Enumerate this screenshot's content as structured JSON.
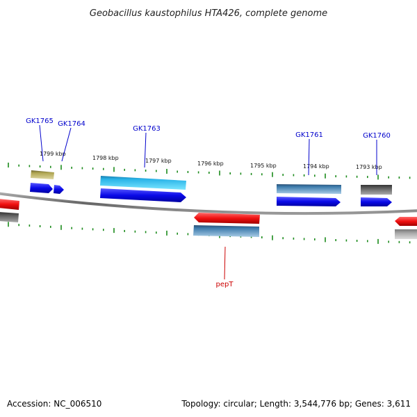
{
  "title": "Geobacillus kaustophilus HTA426, complete genome",
  "footer": {
    "accession": "Accession: NC_006510",
    "summary": "Topology: circular; Length: 3,544,776 bp; Genes: 3,611"
  },
  "scale_labels": [
    "1799 kbp",
    "1798 kbp",
    "1797 kbp",
    "1796 kbp",
    "1795 kbp",
    "1794 kbp",
    "1793 kbp"
  ],
  "gene_labels": [
    {
      "name": "GK1765",
      "color": "#0000cc"
    },
    {
      "name": "GK1764",
      "color": "#0000cc"
    },
    {
      "name": "GK1763",
      "color": "#0000cc"
    },
    {
      "name": "GK1761",
      "color": "#0000cc"
    },
    {
      "name": "GK1760",
      "color": "#0000cc"
    },
    {
      "name": "pepT",
      "color": "#cc0000"
    }
  ],
  "colors": {
    "forward_cds": "#1010e6",
    "reverse_cds": "#ee1010",
    "highlight_cds": "#20c0ee",
    "steel_cds": "#3a78a8",
    "olive_cds": "#a89e50",
    "gray_cds": "#555555",
    "backbone": "#777777",
    "ticks": "#1a8a1a"
  }
}
